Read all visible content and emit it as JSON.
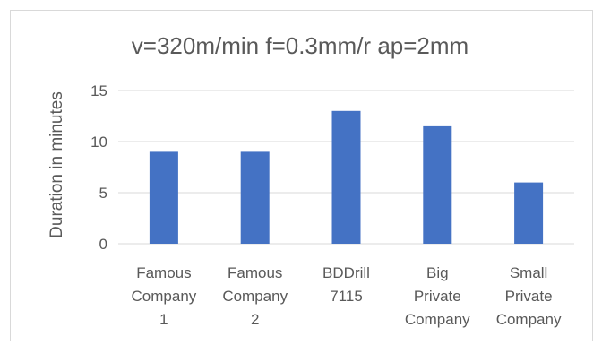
{
  "chart_data": {
    "type": "bar",
    "title": "v=320m/min f=0.3mm/r ap=2mm",
    "xlabel": "",
    "ylabel": "Duration in minutes",
    "categories": [
      [
        "Famous",
        "Company",
        "1"
      ],
      [
        "Famous",
        "Company",
        "2"
      ],
      [
        "BDDrill",
        "7115"
      ],
      [
        "Big",
        "Private",
        "Company"
      ],
      [
        "Small",
        "Private",
        "Company"
      ]
    ],
    "values": [
      9,
      9,
      13,
      11.5,
      6
    ],
    "ylim": [
      0,
      15
    ],
    "yticks": [
      "0",
      "5",
      "10",
      "15"
    ],
    "grid": true,
    "legend": "none",
    "colors": {
      "bar": "#4472c4",
      "grid": "#d9d9d9",
      "text": "#595959",
      "border": "#d9d9d9"
    }
  }
}
